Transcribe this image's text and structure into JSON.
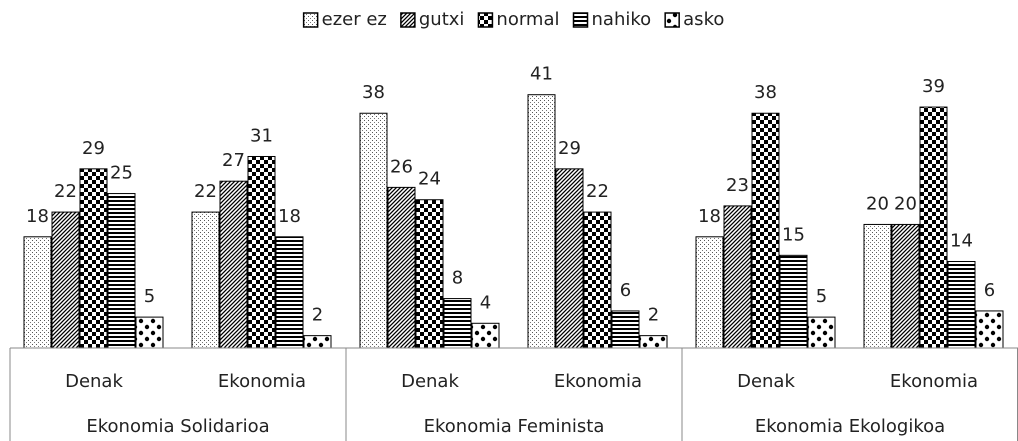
{
  "chart_data": {
    "type": "bar",
    "categories": [
      "Denak",
      "Ekonomia",
      "Denak",
      "Ekonomia",
      "Denak",
      "Ekonomia"
    ],
    "category_groups": [
      "Ekonomia Solidarioa",
      "Ekonomia Feminista",
      "Ekonomia Ekologikoa"
    ],
    "series": [
      {
        "name": "ezer ez",
        "color": "#000000",
        "pattern": "stipple",
        "values": [
          18,
          22,
          38,
          41,
          18,
          20
        ]
      },
      {
        "name": "gutxi",
        "color": "#000000",
        "pattern": "diagonal",
        "values": [
          22,
          27,
          26,
          29,
          23,
          20
        ]
      },
      {
        "name": "normal",
        "color": "#000000",
        "pattern": "checker",
        "values": [
          29,
          31,
          24,
          22,
          38,
          39
        ]
      },
      {
        "name": "nahiko",
        "color": "#000000",
        "pattern": "horizontal",
        "values": [
          25,
          18,
          8,
          6,
          15,
          14
        ]
      },
      {
        "name": "asko",
        "color": "#000000",
        "pattern": "bigdots",
        "values": [
          5,
          2,
          4,
          2,
          5,
          6
        ]
      }
    ],
    "ylim": [
      0,
      45
    ],
    "legend": "top"
  }
}
